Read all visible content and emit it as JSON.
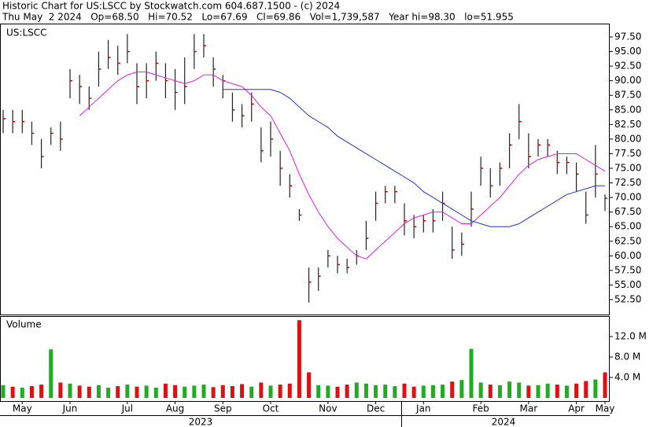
{
  "header": {
    "title": "Historic Chart for US:LSCC by Stockwatch.com 604.687.1500 - (c) 2024",
    "quote": "Thu May  2 2024   Op=68.50   Hi=70.52   Lo=67.69   Cl=69.86   Vol=1,739,587   Year hi=98.30   lo=51.955"
  },
  "years": [
    "2023",
    "2024"
  ],
  "chart_data": [
    {
      "type": "ohlc",
      "title": "US:LSCC",
      "categories": [
        null,
        null,
        "May",
        null,
        null,
        null,
        null,
        "Jun",
        null,
        null,
        null,
        null,
        null,
        "Jul",
        null,
        null,
        null,
        null,
        "Aug",
        null,
        null,
        null,
        null,
        "Sep",
        null,
        null,
        null,
        null,
        "Oct",
        null,
        null,
        null,
        null,
        null,
        "Nov",
        null,
        null,
        null,
        null,
        "Dec",
        null,
        null,
        null,
        null,
        "Jan",
        null,
        null,
        null,
        null,
        null,
        "Feb",
        null,
        null,
        null,
        null,
        "Mar",
        null,
        null,
        null,
        null,
        "Apr",
        null,
        null,
        "May"
      ],
      "high": [
        85,
        85,
        85,
        83,
        80,
        82,
        83,
        92,
        91,
        89,
        95,
        97,
        96,
        98,
        93,
        93,
        95,
        93,
        92,
        94,
        98,
        98,
        94,
        91,
        88,
        86,
        88,
        82,
        83,
        78,
        74,
        68,
        58,
        58,
        61,
        60,
        59.5,
        61,
        66,
        71,
        72,
        72,
        69,
        67,
        67,
        68,
        71,
        65,
        64,
        71,
        77,
        75,
        76,
        81,
        86,
        81,
        80,
        80,
        78,
        77,
        76,
        71,
        79,
        70.52
      ],
      "low": [
        81,
        81,
        81,
        79,
        75,
        79,
        78,
        87,
        86,
        85,
        89,
        92,
        91,
        93,
        86,
        87,
        90,
        87,
        85,
        86,
        92,
        94,
        89,
        87,
        83,
        82,
        83,
        76,
        77,
        72,
        70,
        66,
        52,
        54,
        58,
        57,
        57,
        58.5,
        61,
        66,
        69,
        69,
        63.5,
        63,
        64,
        64,
        66,
        59.5,
        60,
        65,
        72,
        70,
        72,
        75,
        80,
        75,
        77,
        77,
        74,
        74,
        71,
        65.5,
        70,
        67.69
      ],
      "close": [
        83.5,
        83,
        83,
        81,
        77,
        81,
        80,
        90,
        89,
        87,
        92,
        94,
        93,
        95,
        89,
        90,
        93,
        90,
        88,
        89,
        95,
        96,
        92,
        90,
        85,
        84,
        86,
        78,
        80,
        75,
        72,
        67,
        55.5,
        56.5,
        60,
        58.5,
        58,
        60,
        63,
        69,
        71,
        71,
        66,
        65,
        66,
        66,
        69,
        61,
        62,
        68,
        75,
        72,
        75,
        79,
        83,
        77,
        79,
        79,
        76,
        76,
        74,
        67,
        74,
        69.86
      ],
      "ma_short": [
        null,
        null,
        null,
        null,
        null,
        null,
        null,
        null,
        84,
        85.5,
        87,
        88.5,
        90,
        91,
        91.5,
        91.5,
        91,
        90.5,
        90,
        89.5,
        90,
        91,
        91,
        90,
        89.5,
        89,
        87.5,
        85.5,
        84,
        81,
        78,
        74,
        70.5,
        67.5,
        65,
        63,
        61.5,
        60,
        59.5,
        61,
        62.5,
        64,
        65.5,
        66.5,
        67,
        67.5,
        67.5,
        66.5,
        65.5,
        65.5,
        67,
        68.5,
        70,
        72,
        74,
        75.5,
        76.5,
        77,
        77.5,
        77.5,
        77.5,
        76.5,
        75.5,
        74.5
      ],
      "ma_long": [
        null,
        null,
        null,
        null,
        null,
        null,
        null,
        null,
        null,
        null,
        null,
        null,
        null,
        null,
        null,
        null,
        null,
        null,
        null,
        null,
        null,
        null,
        null,
        88.5,
        88.5,
        88.5,
        88.5,
        88.5,
        88.5,
        88,
        87,
        85.5,
        84,
        83,
        82,
        80.5,
        79.5,
        78.5,
        77.5,
        76.5,
        75.5,
        74.5,
        73.5,
        72.5,
        71,
        70,
        69,
        68,
        67,
        66,
        65.5,
        65,
        65,
        65,
        65.5,
        66.5,
        67.5,
        68.5,
        69.5,
        70.5,
        71,
        71.5,
        72,
        72
      ],
      "bar_color": "#222222",
      "close_color": "#cc0000",
      "ma_short_color": "#e020e0",
      "ma_long_color": "#2233cc",
      "ylim": [
        49.94,
        99.79
      ],
      "yticks": [
        {
          "value": 52.5,
          "label": "52.50"
        },
        {
          "value": 55,
          "label": "55.00"
        },
        {
          "value": 57.5,
          "label": "57.50"
        },
        {
          "value": 60,
          "label": "60.00"
        },
        {
          "value": 62.5,
          "label": "62.50"
        },
        {
          "value": 65,
          "label": "65.00"
        },
        {
          "value": 67.5,
          "label": "67.50"
        },
        {
          "value": 70,
          "label": "70.00"
        },
        {
          "value": 72.5,
          "label": "72.50"
        },
        {
          "value": 75,
          "label": "75.00"
        },
        {
          "value": 77.5,
          "label": "77.50"
        },
        {
          "value": 80,
          "label": "80.00"
        },
        {
          "value": 82.5,
          "label": "82.50"
        },
        {
          "value": 85,
          "label": "85.00"
        },
        {
          "value": 87.5,
          "label": "87.50"
        },
        {
          "value": 90,
          "label": "90.00"
        },
        {
          "value": 92.5,
          "label": "92.50"
        },
        {
          "value": 95,
          "label": "95.00"
        },
        {
          "value": 97.5,
          "label": "97.50"
        }
      ]
    },
    {
      "type": "bar",
      "title": "Volume",
      "values": [
        2.5,
        2.2,
        2,
        2.3,
        2.6,
        9.5,
        3,
        2.8,
        2.4,
        2.2,
        2.5,
        2,
        2.3,
        2.6,
        2.2,
        2.4,
        2,
        2.8,
        2.5,
        2.2,
        2.4,
        2.6,
        2.1,
        2.5,
        2.3,
        2.7,
        2.2,
        3,
        2.4,
        2.6,
        2.8,
        15.2,
        5,
        2.5,
        2.4,
        2.2,
        2.6,
        3,
        2.8,
        2.5,
        2.6,
        2.3,
        2.8,
        2.2,
        2.4,
        2.5,
        2.6,
        3.2,
        3.5,
        9.6,
        3,
        2.6,
        2.5,
        3.2,
        3,
        2.4,
        2.5,
        2.8,
        2.6,
        2.4,
        2.8,
        3.3,
        3.6,
        5
      ],
      "up_color": "#22aa22",
      "down_color": "#dd1111",
      "ylim": [
        0,
        16
      ],
      "yticks": [
        {
          "value": 4,
          "label": "4.0 M"
        },
        {
          "value": 8,
          "label": "8.0 M"
        },
        {
          "value": 12,
          "label": "12.0 M"
        }
      ]
    }
  ]
}
